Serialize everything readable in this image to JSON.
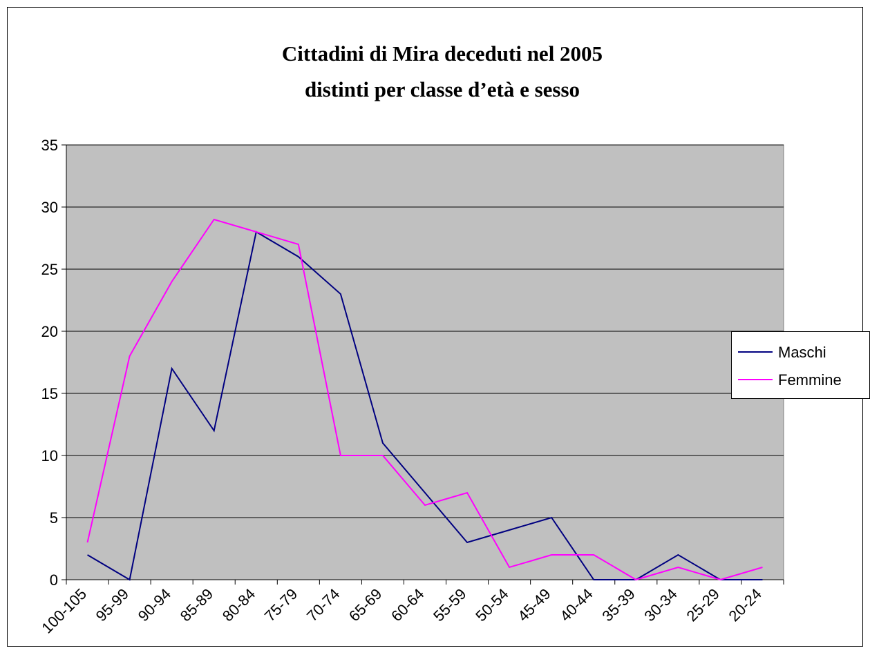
{
  "chart_data": {
    "type": "line",
    "title": "Cittadini di Mira deceduti nel 2005",
    "subtitle": "distinti per classe d’età e sesso",
    "categories": [
      "100-105",
      "95-99",
      "90-94",
      "85-89",
      "80-84",
      "75-79",
      "70-74",
      "65-69",
      "60-64",
      "55-59",
      "50-54",
      "45-49",
      "40-44",
      "35-39",
      "30-34",
      "25-29",
      "20-24"
    ],
    "series": [
      {
        "name": "Maschi",
        "color": "#000080",
        "values": [
          2,
          0,
          17,
          12,
          28,
          26,
          23,
          11,
          7,
          3,
          4,
          5,
          0,
          0,
          2,
          0,
          0
        ]
      },
      {
        "name": "Femmine",
        "color": "#ff00ff",
        "values": [
          3,
          18,
          24,
          29,
          28,
          27,
          10,
          10,
          6,
          7,
          1,
          2,
          2,
          0,
          1,
          0,
          1
        ]
      }
    ],
    "ylim": [
      0,
      35
    ],
    "yticks": [
      0,
      5,
      10,
      15,
      20,
      25,
      30,
      35
    ],
    "grid": true,
    "legend": "right",
    "plot_background": "#c0c0c0"
  }
}
